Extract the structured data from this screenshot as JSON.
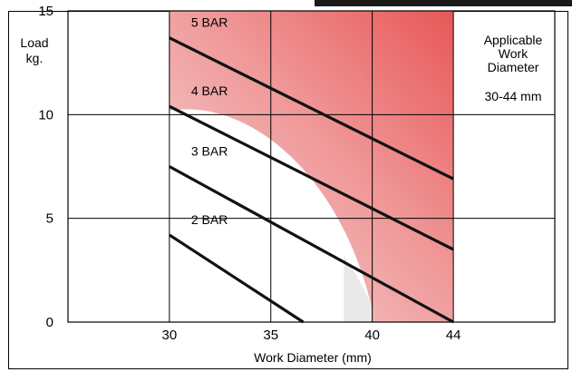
{
  "chart_data": {
    "type": "line",
    "xlabel": "Work Diameter (mm)",
    "ylabel_line1": "Load",
    "ylabel_line2": "kg.",
    "xlim": [
      25,
      49
    ],
    "ylim": [
      0,
      15
    ],
    "x_ticks": [
      30,
      35,
      40,
      44
    ],
    "y_ticks": [
      0,
      5,
      10,
      15
    ],
    "grid": true,
    "highlight_range": [
      30,
      44
    ],
    "highlight_color": "#ea5a5a",
    "series": [
      {
        "name": "5 BAR",
        "x": [
          30,
          44
        ],
        "y": [
          13.7,
          6.9
        ]
      },
      {
        "name": "4 BAR",
        "x": [
          30,
          44
        ],
        "y": [
          10.4,
          3.5
        ]
      },
      {
        "name": "3 BAR",
        "x": [
          30,
          44
        ],
        "y": [
          7.5,
          0.0
        ]
      },
      {
        "name": "2 BAR",
        "x": [
          30,
          36.6
        ],
        "y": [
          4.2,
          0.0
        ]
      }
    ],
    "annotation": {
      "line1": "Applicable",
      "line2": "Work",
      "line3": "Diameter",
      "range": "30-44 mm"
    }
  }
}
